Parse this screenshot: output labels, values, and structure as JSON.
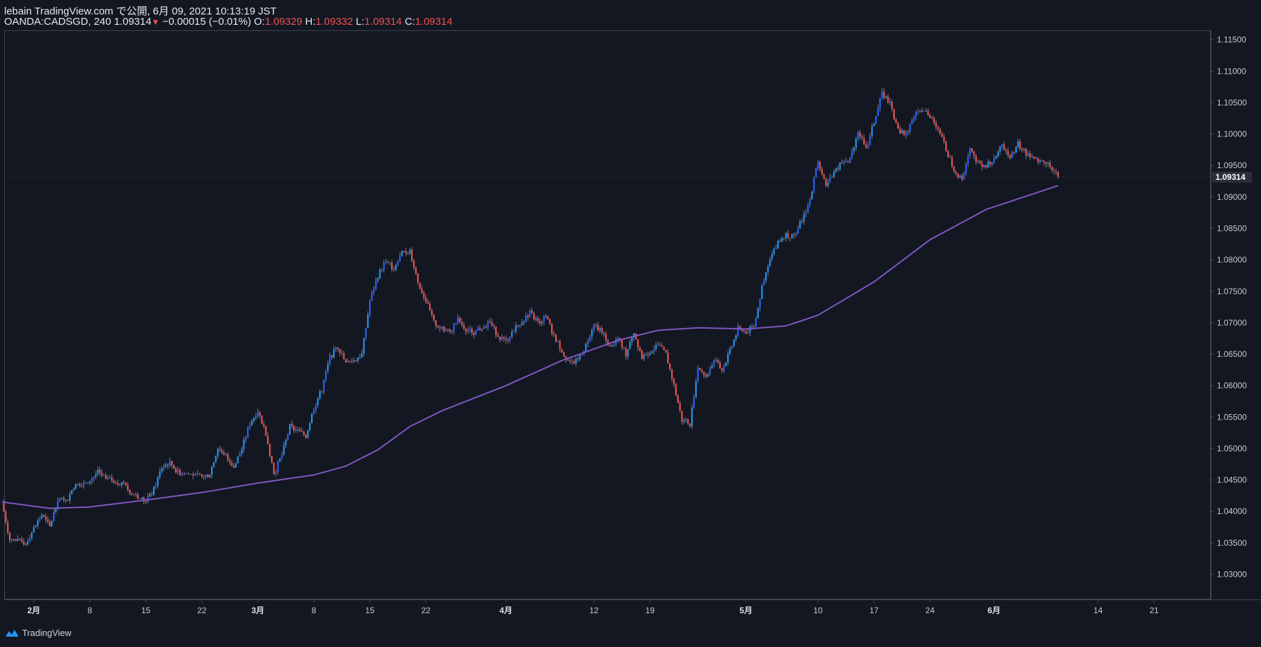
{
  "header": {
    "publish_line": "lebain TradingView.com で公開, 6月 09, 2021 10:13:19 JST",
    "symbol": "OANDA:CADSGD, 240",
    "last": "1.09314",
    "arrow": "▼",
    "change": "−0.00015 (−0.01%)",
    "o_label": "O:",
    "o_value": "1.09329",
    "h_label": "H:",
    "h_value": "1.09332",
    "l_label": "L:",
    "l_value": "1.09314",
    "c_label": "C:",
    "c_value": "1.09314"
  },
  "brand": {
    "name": "TradingView",
    "icon": "tradingview-logo-icon"
  },
  "colors": {
    "background": "#131722",
    "up": "#2962ff",
    "up_light": "#2196f3",
    "down": "#ef5350",
    "ma": "#7e57c2",
    "grid_text": "#c7cad3",
    "last_label_bg": "#2a2e39"
  },
  "chart_data": {
    "type": "candlestick",
    "title": "",
    "ylim": [
      1.026,
      1.1165
    ],
    "y_ticks": [
      "1.03000",
      "1.03500",
      "1.04000",
      "1.04500",
      "1.05000",
      "1.05500",
      "1.06000",
      "1.06500",
      "1.07000",
      "1.07500",
      "1.08000",
      "1.08500",
      "1.09000",
      "1.09500",
      "1.10000",
      "1.10500",
      "1.11000",
      "1.11500"
    ],
    "x_ticks": [
      {
        "label": "2月",
        "date": "2021-02-01",
        "bold": true
      },
      {
        "label": "8",
        "date": "2021-02-08"
      },
      {
        "label": "15",
        "date": "2021-02-15"
      },
      {
        "label": "22",
        "date": "2021-02-22"
      },
      {
        "label": "3月",
        "date": "2021-03-01",
        "bold": true
      },
      {
        "label": "8",
        "date": "2021-03-08"
      },
      {
        "label": "15",
        "date": "2021-03-15"
      },
      {
        "label": "22",
        "date": "2021-03-22"
      },
      {
        "label": "4月",
        "date": "2021-04-01",
        "bold": true
      },
      {
        "label": "12",
        "date": "2021-04-12"
      },
      {
        "label": "19",
        "date": "2021-04-19"
      },
      {
        "label": "5月",
        "date": "2021-05-01",
        "bold": true
      },
      {
        "label": "10",
        "date": "2021-05-10"
      },
      {
        "label": "17",
        "date": "2021-05-17"
      },
      {
        "label": "24",
        "date": "2021-05-24"
      },
      {
        "label": "6月",
        "date": "2021-06-01",
        "bold": true
      },
      {
        "label": "14",
        "date": "2021-06-14"
      },
      {
        "label": "21",
        "date": "2021-06-21"
      }
    ],
    "price_path": [
      [
        "2021-01-28",
        1.0415
      ],
      [
        "2021-01-29",
        1.0355
      ],
      [
        "2021-01-31",
        1.035
      ],
      [
        "2021-02-02",
        1.0395
      ],
      [
        "2021-02-03",
        1.0375
      ],
      [
        "2021-02-04",
        1.042
      ],
      [
        "2021-02-05",
        1.0415
      ],
      [
        "2021-02-06",
        1.044
      ],
      [
        "2021-02-08",
        1.045
      ],
      [
        "2021-02-09",
        1.0462
      ],
      [
        "2021-02-10",
        1.0452
      ],
      [
        "2021-02-12",
        1.0445
      ],
      [
        "2021-02-13",
        1.0432
      ],
      [
        "2021-02-15",
        1.0415
      ],
      [
        "2021-02-16",
        1.0435
      ],
      [
        "2021-02-17",
        1.047
      ],
      [
        "2021-02-18",
        1.0478
      ],
      [
        "2021-02-19",
        1.0462
      ],
      [
        "2021-02-22",
        1.0455
      ],
      [
        "2021-02-23",
        1.046
      ],
      [
        "2021-02-24",
        1.05
      ],
      [
        "2021-02-25",
        1.049
      ],
      [
        "2021-02-26",
        1.047
      ],
      [
        "2021-02-27",
        1.05
      ],
      [
        "2021-02-28",
        1.054
      ],
      [
        "2021-03-01",
        1.056
      ],
      [
        "2021-03-02",
        1.0525
      ],
      [
        "2021-03-03",
        1.046
      ],
      [
        "2021-03-04",
        1.049
      ],
      [
        "2021-03-05",
        1.0535
      ],
      [
        "2021-03-07",
        1.052
      ],
      [
        "2021-03-08",
        1.0565
      ],
      [
        "2021-03-09",
        1.0595
      ],
      [
        "2021-03-10",
        1.0645
      ],
      [
        "2021-03-11",
        1.0662
      ],
      [
        "2021-03-12",
        1.0635
      ],
      [
        "2021-03-13",
        1.064
      ],
      [
        "2021-03-14",
        1.065
      ],
      [
        "2021-03-15",
        1.0735
      ],
      [
        "2021-03-16",
        1.0775
      ],
      [
        "2021-03-17",
        1.08
      ],
      [
        "2021-03-18",
        1.0785
      ],
      [
        "2021-03-19",
        1.081
      ],
      [
        "2021-03-20",
        1.0815
      ],
      [
        "2021-03-21",
        1.0765
      ],
      [
        "2021-03-22",
        1.0735
      ],
      [
        "2021-03-23",
        1.07
      ],
      [
        "2021-03-24",
        1.069
      ],
      [
        "2021-03-25",
        1.0685
      ],
      [
        "2021-03-26",
        1.0705
      ],
      [
        "2021-03-27",
        1.069
      ],
      [
        "2021-03-28",
        1.0685
      ],
      [
        "2021-03-30",
        1.07
      ],
      [
        "2021-03-31",
        1.068
      ],
      [
        "2021-04-01",
        1.067
      ],
      [
        "2021-04-02",
        1.069
      ],
      [
        "2021-04-04",
        1.0715
      ],
      [
        "2021-04-05",
        1.07
      ],
      [
        "2021-04-06",
        1.071
      ],
      [
        "2021-04-07",
        1.068
      ],
      [
        "2021-04-08",
        1.0655
      ],
      [
        "2021-04-09",
        1.0635
      ],
      [
        "2021-04-10",
        1.064
      ],
      [
        "2021-04-11",
        1.0665
      ],
      [
        "2021-04-12",
        1.07
      ],
      [
        "2021-04-13",
        1.0685
      ],
      [
        "2021-04-14",
        1.066
      ],
      [
        "2021-04-15",
        1.0675
      ],
      [
        "2021-04-16",
        1.065
      ],
      [
        "2021-04-17",
        1.0685
      ],
      [
        "2021-04-18",
        1.0645
      ],
      [
        "2021-04-19",
        1.0655
      ],
      [
        "2021-04-20",
        1.0665
      ],
      [
        "2021-04-21",
        1.065
      ],
      [
        "2021-04-22",
        1.06
      ],
      [
        "2021-04-23",
        1.0545
      ],
      [
        "2021-04-24",
        1.054
      ],
      [
        "2021-04-25",
        1.063
      ],
      [
        "2021-04-26",
        1.0615
      ],
      [
        "2021-04-27",
        1.064
      ],
      [
        "2021-04-28",
        1.0625
      ],
      [
        "2021-04-29",
        1.0655
      ],
      [
        "2021-04-30",
        1.069
      ],
      [
        "2021-05-01",
        1.0685
      ],
      [
        "2021-05-02",
        1.0695
      ],
      [
        "2021-05-03",
        1.0755
      ],
      [
        "2021-05-04",
        1.08
      ],
      [
        "2021-05-05",
        1.083
      ],
      [
        "2021-05-06",
        1.084
      ],
      [
        "2021-05-07",
        1.0835
      ],
      [
        "2021-05-08",
        1.0865
      ],
      [
        "2021-05-09",
        1.0895
      ],
      [
        "2021-05-10",
        1.096
      ],
      [
        "2021-05-11",
        1.0915
      ],
      [
        "2021-05-12",
        1.094
      ],
      [
        "2021-05-13",
        1.0955
      ],
      [
        "2021-05-14",
        1.096
      ],
      [
        "2021-05-15",
        1.1005
      ],
      [
        "2021-05-16",
        1.0975
      ],
      [
        "2021-05-17",
        1.102
      ],
      [
        "2021-05-18",
        1.1065
      ],
      [
        "2021-05-19",
        1.105
      ],
      [
        "2021-05-20",
        1.1005
      ],
      [
        "2021-05-21",
        1.1
      ],
      [
        "2021-05-22",
        1.103
      ],
      [
        "2021-05-23",
        1.104
      ],
      [
        "2021-05-24",
        1.103
      ],
      [
        "2021-05-25",
        1.101
      ],
      [
        "2021-05-26",
        1.0975
      ],
      [
        "2021-05-27",
        1.0945
      ],
      [
        "2021-05-28",
        1.0925
      ],
      [
        "2021-05-29",
        1.0975
      ],
      [
        "2021-05-30",
        1.0955
      ],
      [
        "2021-05-31",
        1.095
      ],
      [
        "2021-06-01",
        1.096
      ],
      [
        "2021-06-02",
        1.0985
      ],
      [
        "2021-06-03",
        1.0965
      ],
      [
        "2021-06-04",
        1.0985
      ],
      [
        "2021-06-05",
        1.097
      ],
      [
        "2021-06-06",
        1.096
      ],
      [
        "2021-06-07",
        1.0955
      ],
      [
        "2021-06-08",
        1.095
      ],
      [
        "2021-06-09",
        1.09314
      ]
    ],
    "ma_line": [
      [
        "2021-01-28",
        1.0415
      ],
      [
        "2021-02-03",
        1.0405
      ],
      [
        "2021-02-08",
        1.0407
      ],
      [
        "2021-02-15",
        1.0418
      ],
      [
        "2021-02-22",
        1.043
      ],
      [
        "2021-03-01",
        1.0445
      ],
      [
        "2021-03-08",
        1.0458
      ],
      [
        "2021-03-12",
        1.0472
      ],
      [
        "2021-03-16",
        1.0498
      ],
      [
        "2021-03-20",
        1.0535
      ],
      [
        "2021-03-24",
        1.056
      ],
      [
        "2021-04-01",
        1.06
      ],
      [
        "2021-04-08",
        1.064
      ],
      [
        "2021-04-15",
        1.0672
      ],
      [
        "2021-04-20",
        1.0688
      ],
      [
        "2021-04-25",
        1.0692
      ],
      [
        "2021-05-01",
        1.069
      ],
      [
        "2021-05-06",
        1.0695
      ],
      [
        "2021-05-10",
        1.0712
      ],
      [
        "2021-05-17",
        1.0765
      ],
      [
        "2021-05-24",
        1.0832
      ],
      [
        "2021-05-31",
        1.088
      ],
      [
        "2021-06-09",
        1.0918
      ]
    ],
    "last_price": 1.09314,
    "last_price_label": "1.09314"
  }
}
